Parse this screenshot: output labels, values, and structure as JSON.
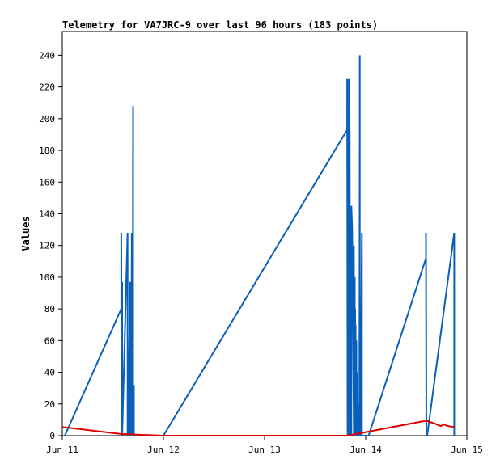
{
  "chart_data": {
    "type": "line",
    "title": "Telemetry for VA7JRC-9 over last 96 hours (183 points)",
    "xlabel": "",
    "ylabel": "Values",
    "x_unit": "hours since Jun 11 00:00",
    "xlim": [
      0,
      96
    ],
    "ylim": [
      0,
      255
    ],
    "x_ticks": [
      {
        "value": 0,
        "label": "Jun 11"
      },
      {
        "value": 24,
        "label": "Jun 12"
      },
      {
        "value": 48,
        "label": "Jun 13"
      },
      {
        "value": 72,
        "label": "Jun 14"
      },
      {
        "value": 96,
        "label": "Jun 15"
      }
    ],
    "y_ticks": [
      0,
      20,
      40,
      60,
      80,
      100,
      120,
      140,
      160,
      180,
      200,
      220,
      240
    ],
    "grid": false,
    "legend": "none",
    "series": [
      {
        "color": "#0a5fb8",
        "x": [
          0.6,
          14.0,
          14.0,
          14.1,
          14.2,
          14.2,
          15.5,
          15.5,
          15.6,
          16.1,
          16.1,
          16.2,
          16.3,
          16.4,
          16.4,
          16.5,
          16.6,
          16.6,
          16.7,
          16.8,
          16.8,
          16.9,
          17.0,
          17.0,
          17.2,
          17.2,
          17.3,
          17.8,
          17.8,
          17.9,
          24.0,
          67.6,
          67.6,
          67.7,
          67.8,
          67.8,
          67.9,
          68.0,
          68.0,
          68.1,
          68.2,
          68.3,
          68.4,
          68.4,
          68.5,
          68.6,
          68.6,
          68.8,
          69.2,
          69.2,
          69.3,
          69.4,
          69.4,
          69.5,
          69.6,
          69.6,
          69.7,
          69.8,
          69.8,
          69.9,
          70.0,
          70.0,
          70.1,
          70.2,
          70.2,
          70.3,
          70.4,
          70.4,
          70.5,
          70.6,
          70.6,
          70.7,
          70.8,
          71.1,
          71.1,
          71.2,
          72.6,
          72.6,
          72.7,
          86.3,
          86.3,
          86.4,
          86.5,
          86.5,
          86.6,
          93.0,
          93.0,
          93.1
        ],
        "y": [
          0,
          80,
          128,
          0,
          97,
          0,
          128,
          0,
          0,
          97,
          0,
          80,
          0,
          48,
          0,
          128,
          0,
          65,
          0,
          208,
          0,
          0,
          32,
          0,
          0,
          0,
          0,
          0,
          0,
          0,
          0,
          193,
          225,
          0,
          193,
          0,
          193,
          0,
          225,
          0,
          193,
          0,
          5,
          0,
          48,
          0,
          145,
          130,
          0,
          120,
          0,
          100,
          0,
          80,
          0,
          70,
          0,
          60,
          0,
          40,
          0,
          30,
          0,
          20,
          0,
          10,
          0,
          5,
          0,
          240,
          0,
          0,
          0,
          128,
          0,
          0,
          0,
          0,
          0,
          112,
          128,
          0,
          0,
          0,
          0,
          128,
          0,
          0
        ]
      },
      {
        "color": "#dd0000",
        "x": [
          0.0,
          14.0,
          24.0,
          67.6,
          86.4,
          88.5,
          89.8,
          90.5,
          91.6,
          93.0
        ],
        "y": [
          5.5,
          1.0,
          0.0,
          0.0,
          9.5,
          7.5,
          6.0,
          7.0,
          6.0,
          5.5
        ]
      }
    ]
  }
}
